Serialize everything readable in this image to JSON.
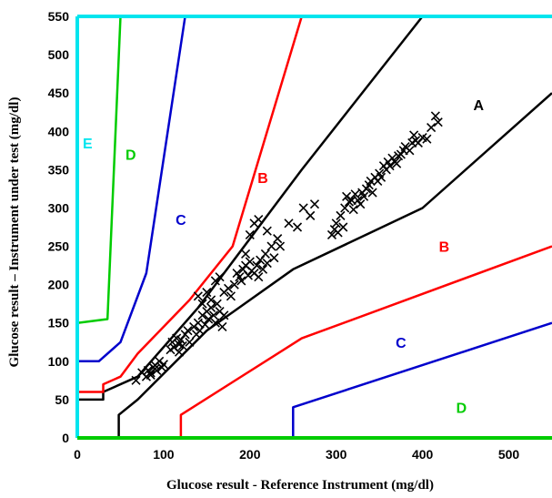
{
  "chart_data": {
    "type": "scatter",
    "title": "",
    "xlabel": "Glucose result - Reference Instrument (mg/dl)",
    "ylabel": "Glucose result – Instrument under test (mg/dl)",
    "xlim": [
      0,
      550
    ],
    "ylim": [
      0,
      550
    ],
    "x_ticks": [
      "0",
      "100",
      "200",
      "300",
      "400",
      "500"
    ],
    "y_ticks": [
      "0",
      "50",
      "100",
      "150",
      "200",
      "250",
      "300",
      "350",
      "400",
      "450",
      "500",
      "550"
    ],
    "grid": false,
    "colors": {
      "A": "#000000",
      "B": "#ff0000",
      "C": "#0000cc",
      "D": "#00cc00",
      "E": "#00e5ee",
      "points": "#000000",
      "frame_x": "#00cc00",
      "frame_y": "#00e5ee"
    },
    "zone_labels": [
      {
        "text": "A",
        "x": 465,
        "y": 435,
        "color": "#000000"
      },
      {
        "text": "B",
        "x": 215,
        "y": 340,
        "color": "#ff0000"
      },
      {
        "text": "B",
        "x": 425,
        "y": 250,
        "color": "#ff0000"
      },
      {
        "text": "C",
        "x": 120,
        "y": 285,
        "color": "#0000cc"
      },
      {
        "text": "C",
        "x": 375,
        "y": 125,
        "color": "#0000cc"
      },
      {
        "text": "D",
        "x": 62,
        "y": 370,
        "color": "#00cc00"
      },
      {
        "text": "D",
        "x": 445,
        "y": 40,
        "color": "#00cc00"
      },
      {
        "text": "E",
        "x": 12,
        "y": 385,
        "color": "#00e5ee"
      }
    ],
    "boundaries": [
      {
        "zone": "A",
        "color": "#000000",
        "points": [
          [
            0,
            50
          ],
          [
            30,
            50
          ],
          [
            30,
            60
          ],
          [
            70,
            80
          ],
          [
            140,
            170
          ],
          [
            260,
            350
          ],
          [
            400,
            550
          ]
        ]
      },
      {
        "zone": "A",
        "color": "#000000",
        "points": [
          [
            48,
            0
          ],
          [
            48,
            30
          ],
          [
            70,
            50
          ],
          [
            150,
            140
          ],
          [
            250,
            220
          ],
          [
            400,
            300
          ],
          [
            550,
            450
          ]
        ]
      },
      {
        "zone": "B",
        "color": "#ff0000",
        "points": [
          [
            0,
            60
          ],
          [
            30,
            60
          ],
          [
            30,
            70
          ],
          [
            50,
            80
          ],
          [
            70,
            110
          ],
          [
            130,
            180
          ],
          [
            180,
            250
          ],
          [
            260,
            550
          ]
        ]
      },
      {
        "zone": "B",
        "color": "#ff0000",
        "points": [
          [
            120,
            0
          ],
          [
            120,
            30
          ],
          [
            260,
            130
          ],
          [
            550,
            250
          ]
        ]
      },
      {
        "zone": "C",
        "color": "#0000cc",
        "points": [
          [
            0,
            100
          ],
          [
            25,
            100
          ],
          [
            50,
            125
          ],
          [
            80,
            215
          ],
          [
            125,
            550
          ]
        ]
      },
      {
        "zone": "C",
        "color": "#0000cc",
        "points": [
          [
            250,
            0
          ],
          [
            250,
            40
          ],
          [
            550,
            150
          ]
        ]
      },
      {
        "zone": "D",
        "color": "#00cc00",
        "points": [
          [
            0,
            150
          ],
          [
            35,
            155
          ],
          [
            50,
            550
          ]
        ]
      }
    ],
    "series": [
      {
        "points": [
          [
            68,
            75
          ],
          [
            75,
            85
          ],
          [
            80,
            80
          ],
          [
            82,
            88
          ],
          [
            85,
            85
          ],
          [
            88,
            92
          ],
          [
            90,
            95
          ],
          [
            92,
            88
          ],
          [
            95,
            100
          ],
          [
            98,
            92
          ],
          [
            100,
            96
          ],
          [
            85,
            82
          ],
          [
            90,
            90
          ],
          [
            108,
            115
          ],
          [
            110,
            125
          ],
          [
            112,
            118
          ],
          [
            115,
            130
          ],
          [
            118,
            122
          ],
          [
            120,
            128
          ],
          [
            122,
            120
          ],
          [
            125,
            135
          ],
          [
            128,
            140
          ],
          [
            130,
            125
          ],
          [
            118,
            112
          ],
          [
            135,
            145
          ],
          [
            138,
            135
          ],
          [
            140,
            150
          ],
          [
            142,
            140
          ],
          [
            145,
            160
          ],
          [
            148,
            148
          ],
          [
            150,
            165
          ],
          [
            152,
            155
          ],
          [
            155,
            170
          ],
          [
            158,
            160
          ],
          [
            160,
            150
          ],
          [
            162,
            175
          ],
          [
            165,
            165
          ],
          [
            168,
            145
          ],
          [
            170,
            160
          ],
          [
            140,
            185
          ],
          [
            145,
            175
          ],
          [
            150,
            190
          ],
          [
            155,
            180
          ],
          [
            160,
            205
          ],
          [
            165,
            210
          ],
          [
            170,
            190
          ],
          [
            175,
            195
          ],
          [
            178,
            185
          ],
          [
            182,
            200
          ],
          [
            185,
            215
          ],
          [
            188,
            210
          ],
          [
            190,
            205
          ],
          [
            192,
            220
          ],
          [
            195,
            225
          ],
          [
            198,
            212
          ],
          [
            200,
            230
          ],
          [
            202,
            218
          ],
          [
            205,
            215
          ],
          [
            208,
            225
          ],
          [
            210,
            210
          ],
          [
            212,
            232
          ],
          [
            215,
            220
          ],
          [
            218,
            240
          ],
          [
            220,
            228
          ],
          [
            225,
            250
          ],
          [
            228,
            235
          ],
          [
            232,
            260
          ],
          [
            235,
            250
          ],
          [
            195,
            240
          ],
          [
            200,
            265
          ],
          [
            205,
            280
          ],
          [
            210,
            285
          ],
          [
            220,
            270
          ],
          [
            245,
            280
          ],
          [
            255,
            275
          ],
          [
            262,
            300
          ],
          [
            270,
            290
          ],
          [
            275,
            305
          ],
          [
            295,
            265
          ],
          [
            298,
            272
          ],
          [
            300,
            280
          ],
          [
            302,
            268
          ],
          [
            305,
            290
          ],
          [
            308,
            275
          ],
          [
            310,
            300
          ],
          [
            312,
            315
          ],
          [
            315,
            308
          ],
          [
            318,
            310
          ],
          [
            320,
            298
          ],
          [
            322,
            318
          ],
          [
            325,
            310
          ],
          [
            328,
            305
          ],
          [
            330,
            320
          ],
          [
            332,
            315
          ],
          [
            335,
            325
          ],
          [
            338,
            330
          ],
          [
            340,
            335
          ],
          [
            342,
            320
          ],
          [
            345,
            340
          ],
          [
            348,
            335
          ],
          [
            350,
            345
          ],
          [
            352,
            340
          ],
          [
            355,
            355
          ],
          [
            358,
            350
          ],
          [
            360,
            360
          ],
          [
            362,
            355
          ],
          [
            365,
            365
          ],
          [
            368,
            360
          ],
          [
            370,
            358
          ],
          [
            372,
            368
          ],
          [
            375,
            370
          ],
          [
            378,
            375
          ],
          [
            380,
            380
          ],
          [
            385,
            375
          ],
          [
            388,
            385
          ],
          [
            390,
            395
          ],
          [
            392,
            388
          ],
          [
            395,
            385
          ],
          [
            400,
            392
          ],
          [
            405,
            390
          ],
          [
            410,
            405
          ],
          [
            415,
            420
          ],
          [
            418,
            412
          ]
        ]
      }
    ]
  }
}
